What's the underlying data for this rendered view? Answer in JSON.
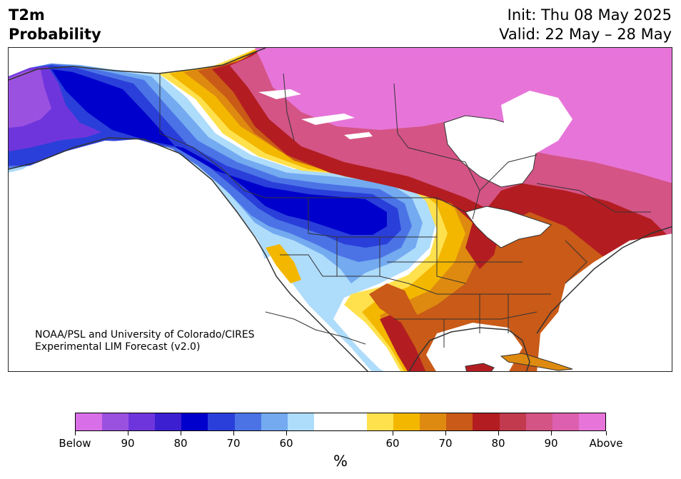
{
  "header": {
    "variable": "T2m",
    "product": "Probability",
    "init": "Init: Thu 08 May 2025",
    "valid": "Valid: 22 May – 28 May"
  },
  "credit": {
    "line1": "NOAA/PSL and University of Colorado/CIRES",
    "line2": "Experimental LIM Forecast (v2.0)"
  },
  "colorbar": {
    "unit": "%",
    "tick_labels": [
      "Below",
      "90",
      "80",
      "70",
      "60",
      "60",
      "70",
      "80",
      "90",
      "Above"
    ],
    "colors": [
      "#d96fe8",
      "#9b51e0",
      "#6f35dd",
      "#3b1fd1",
      "#0000cc",
      "#2a3fd9",
      "#4b73e6",
      "#73aaf0",
      "#aedcfb",
      "#ffffff",
      "#ffffff",
      "#ffe14d",
      "#f3b700",
      "#de8a10",
      "#c95a17",
      "#b31d21",
      "#c23a4e",
      "#d45485",
      "#dd60b0",
      "#e775d9"
    ]
  },
  "map_legend_colors": {
    "strong_above": "#e775d9",
    "above_90": "#d45485",
    "above_80": "#b31d21",
    "above_70": "#c95a17",
    "above_65": "#de8a10",
    "above_60": "#f3b700",
    "above_55": "#ffe14d",
    "below_55": "#aedcfb",
    "below_60": "#73aaf0",
    "below_65": "#4b73e6",
    "below_70": "#2a3fd9",
    "below_80": "#0000cc",
    "below_85": "#3b1fd1",
    "below_90": "#6f35dd",
    "strong_below": "#9b51e0",
    "borders": "#333333"
  }
}
